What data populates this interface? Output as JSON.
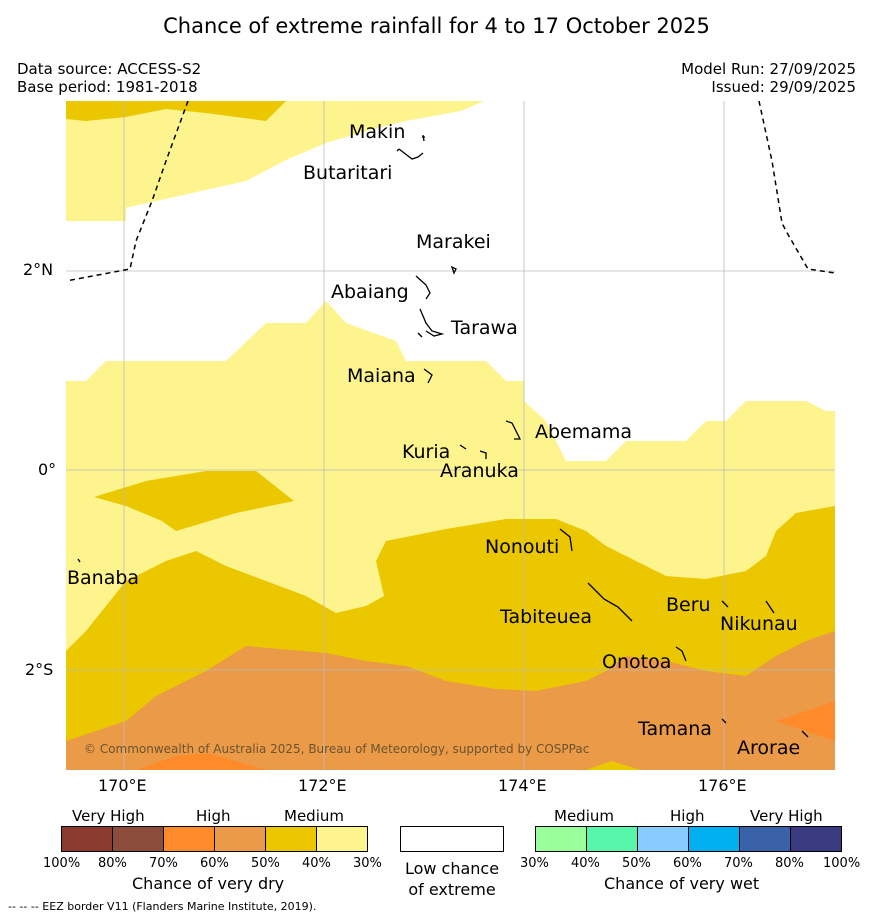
{
  "title": "Chance of extreme rainfall for 4 to 17 October 2025",
  "meta": {
    "data_source": "Data source: ACCESS-S2",
    "base_period": "Base period: 1981-2018",
    "model_run": "Model Run: 27/09/2025",
    "issued": "Issued: 29/09/2025"
  },
  "axes": {
    "lat_labels": [
      "2°N",
      "0°",
      "2°S"
    ],
    "lon_labels": [
      "170°E",
      "172°E",
      "174°E",
      "176°E"
    ]
  },
  "islands": [
    "Makin",
    "Butaritari",
    "Marakei",
    "Abaiang",
    "Tarawa",
    "Maiana",
    "Abemama",
    "Kuria",
    "Aranuka",
    "Nonouti",
    "Banaba",
    "Beru",
    "Tabiteuea",
    "Nikunau",
    "Onotoa",
    "Tamana",
    "Arorae"
  ],
  "copyright": "© Commonwealth of Australia 2025, Bureau of Meteorology, supported by COSPPac",
  "colors": {
    "dry_medium_light": "#fdf48e",
    "dry_medium": "#ebc700",
    "dry_high_light": "#eb9a48",
    "dry_high": "#ff8a2a",
    "low_chance": "#ffffff"
  },
  "legend": {
    "dry": {
      "categories": [
        "Very High",
        "High",
        "Medium"
      ],
      "percents": [
        "100%",
        "80%",
        "70%",
        "60%",
        "50%",
        "40%",
        "30%"
      ],
      "colors": [
        "#8b3a2e",
        "#8b4c3a",
        "#ff8a2a",
        "#eb9a48",
        "#ebc700",
        "#fdf48e"
      ],
      "title": "Chance of very dry"
    },
    "low": {
      "line1": "Low chance",
      "line2": "of extreme"
    },
    "wet": {
      "categories": [
        "Medium",
        "High",
        "Very High"
      ],
      "percents": [
        "30%",
        "40%",
        "50%",
        "60%",
        "70%",
        "80%",
        "100%"
      ],
      "colors": [
        "#99ff99",
        "#55f5aa",
        "#88ccff",
        "#00b0f0",
        "#3a62a8",
        "#3a3a80"
      ],
      "title": "Chance of very wet"
    }
  },
  "footer": "--  --  -- EEZ border V11 (Flanders Marine Institute, 2019)."
}
